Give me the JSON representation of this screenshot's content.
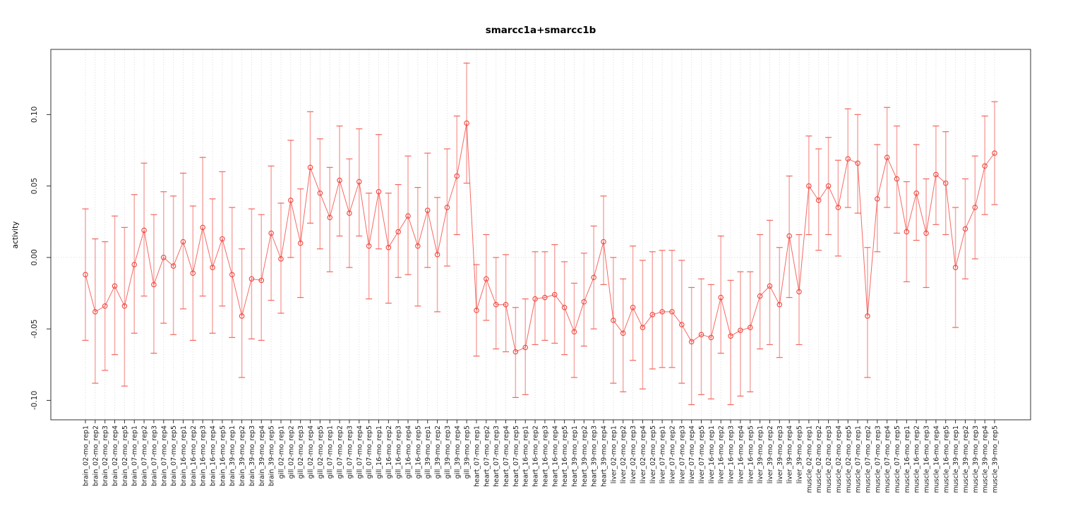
{
  "chart_data": {
    "type": "scatter",
    "title": "smarcc1a+smarcc1b",
    "xlabel": "",
    "ylabel": "activity",
    "ylim": [
      -0.1136,
      0.1456
    ],
    "yticks": [
      -0.1,
      -0.05,
      0.0,
      0.05,
      0.1
    ],
    "ytick_labels": [
      "-0.10",
      "-0.05",
      "0.00",
      "0.05",
      "0.10"
    ],
    "grid": {
      "vertical_per_category": "dotted",
      "zero_line": "dotted",
      "legend": "none"
    },
    "marker": "open-circle",
    "colors": {
      "point": "#f2453d",
      "line": "#f2453d",
      "bar": "#f58f8a",
      "cap": "#f4564d",
      "grid": "#d8d8d8",
      "axis": "#333333"
    },
    "categories": [
      "brain_02-mo_rep1",
      "brain_02-mo_rep2",
      "brain_02-mo_rep3",
      "brain_02-mo_rep4",
      "brain_02-mo_rep5",
      "brain_07-mo_rep1",
      "brain_07-mo_rep2",
      "brain_07-mo_rep3",
      "brain_07-mo_rep4",
      "brain_07-mo_rep5",
      "brain_16-mo_rep1",
      "brain_16-mo_rep2",
      "brain_16-mo_rep3",
      "brain_16-mo_rep4",
      "brain_16-mo_rep5",
      "brain_39-mo_rep1",
      "brain_39-mo_rep2",
      "brain_39-mo_rep3",
      "brain_39-mo_rep4",
      "brain_39-mo_rep5",
      "gill_02-mo_rep1",
      "gill_02-mo_rep2",
      "gill_02-mo_rep3",
      "gill_02-mo_rep4",
      "gill_02-mo_rep5",
      "gill_07-mo_rep1",
      "gill_07-mo_rep2",
      "gill_07-mo_rep3",
      "gill_07-mo_rep4",
      "gill_07-mo_rep5",
      "gill_16-mo_rep1",
      "gill_16-mo_rep2",
      "gill_16-mo_rep3",
      "gill_16-mo_rep4",
      "gill_16-mo_rep5",
      "gill_39-mo_rep1",
      "gill_39-mo_rep2",
      "gill_39-mo_rep3",
      "gill_39-mo_rep4",
      "gill_39-mo_rep5",
      "heart_07-mo_rep1",
      "heart_07-mo_rep2",
      "heart_07-mo_rep3",
      "heart_07-mo_rep4",
      "heart_07-mo_rep5",
      "heart_16-mo_rep1",
      "heart_16-mo_rep2",
      "heart_16-mo_rep3",
      "heart_16-mo_rep4",
      "heart_16-mo_rep5",
      "heart_39-mo_rep1",
      "heart_39-mo_rep2",
      "heart_39-mo_rep3",
      "heart_39-mo_rep4",
      "liver_02-mo_rep1",
      "liver_02-mo_rep2",
      "liver_02-mo_rep3",
      "liver_02-mo_rep4",
      "liver_02-mo_rep5",
      "liver_07-mo_rep1",
      "liver_07-mo_rep2",
      "liver_07-mo_rep3",
      "liver_07-mo_rep4",
      "liver_07-mo_rep5",
      "liver_16-mo_rep1",
      "liver_16-mo_rep2",
      "liver_16-mo_rep3",
      "liver_16-mo_rep4",
      "liver_16-mo_rep5",
      "liver_39-mo_rep1",
      "liver_39-mo_rep2",
      "liver_39-mo_rep3",
      "liver_39-mo_rep4",
      "liver_39-mo_rep5",
      "muscle_02-mo_rep1",
      "muscle_02-mo_rep2",
      "muscle_02-mo_rep3",
      "muscle_02-mo_rep4",
      "muscle_02-mo_rep5",
      "muscle_07-mo_rep1",
      "muscle_07-mo_rep2",
      "muscle_07-mo_rep3",
      "muscle_07-mo_rep4",
      "muscle_07-mo_rep5",
      "muscle_16-mo_rep1",
      "muscle_16-mo_rep2",
      "muscle_16-mo_rep3",
      "muscle_16-mo_rep4",
      "muscle_16-mo_rep5",
      "muscle_39-mo_rep1",
      "muscle_39-mo_rep2",
      "muscle_39-mo_rep3",
      "muscle_39-mo_rep4",
      "muscle_39-mo_rep5"
    ],
    "values": [
      -0.012,
      -0.038,
      -0.034,
      -0.02,
      -0.034,
      -0.005,
      0.019,
      -0.019,
      0.0,
      -0.006,
      0.011,
      -0.011,
      0.021,
      -0.007,
      0.013,
      -0.012,
      -0.041,
      -0.015,
      -0.016,
      0.017,
      -0.001,
      0.04,
      0.01,
      0.063,
      0.045,
      0.028,
      0.054,
      0.031,
      0.053,
      0.008,
      0.046,
      0.007,
      0.018,
      0.029,
      0.008,
      0.033,
      0.002,
      0.035,
      0.057,
      0.094,
      -0.037,
      -0.015,
      -0.033,
      -0.033,
      -0.066,
      -0.063,
      -0.029,
      -0.028,
      -0.026,
      -0.035,
      -0.052,
      -0.031,
      -0.014,
      0.011,
      -0.044,
      -0.053,
      -0.035,
      -0.049,
      -0.04,
      -0.038,
      -0.038,
      -0.047,
      -0.059,
      -0.054,
      -0.056,
      -0.028,
      -0.055,
      -0.051,
      -0.049,
      -0.027,
      -0.02,
      -0.033,
      0.015,
      -0.024,
      0.05,
      0.04,
      0.05,
      0.035,
      0.069,
      0.066,
      -0.041,
      0.041,
      0.07,
      0.055,
      0.018,
      0.045,
      0.017,
      0.058,
      0.052,
      -0.007,
      0.02,
      0.035,
      0.064,
      0.073
    ],
    "err_hi": [
      0.034,
      0.013,
      0.011,
      0.029,
      0.021,
      0.044,
      0.066,
      0.03,
      0.046,
      0.043,
      0.059,
      0.036,
      0.07,
      0.041,
      0.06,
      0.035,
      0.006,
      0.034,
      0.03,
      0.064,
      0.038,
      0.082,
      0.048,
      0.102,
      0.083,
      0.063,
      0.092,
      0.069,
      0.09,
      0.045,
      0.086,
      0.045,
      0.051,
      0.071,
      0.049,
      0.073,
      0.042,
      0.076,
      0.099,
      0.136,
      -0.005,
      0.016,
      0.0,
      0.002,
      -0.035,
      -0.029,
      0.004,
      0.004,
      0.009,
      -0.003,
      -0.018,
      0.003,
      0.022,
      0.043,
      0.0,
      -0.015,
      0.008,
      -0.002,
      0.004,
      0.005,
      0.005,
      -0.002,
      -0.021,
      -0.015,
      -0.019,
      0.015,
      -0.016,
      -0.01,
      -0.01,
      0.016,
      0.026,
      0.007,
      0.057,
      0.016,
      0.085,
      0.076,
      0.084,
      0.068,
      0.104,
      0.1,
      0.007,
      0.079,
      0.105,
      0.092,
      0.053,
      0.079,
      0.055,
      0.092,
      0.088,
      0.035,
      0.055,
      0.071,
      0.099,
      0.109
    ],
    "err_lo": [
      -0.058,
      -0.088,
      -0.079,
      -0.068,
      -0.09,
      -0.053,
      -0.027,
      -0.067,
      -0.046,
      -0.054,
      -0.036,
      -0.058,
      -0.027,
      -0.053,
      -0.034,
      -0.056,
      -0.084,
      -0.057,
      -0.058,
      -0.03,
      -0.039,
      0.0,
      -0.028,
      0.024,
      0.006,
      -0.01,
      0.015,
      -0.007,
      0.015,
      -0.029,
      0.006,
      -0.032,
      -0.014,
      -0.012,
      -0.034,
      -0.007,
      -0.038,
      -0.006,
      0.016,
      0.052,
      -0.069,
      -0.044,
      -0.064,
      -0.066,
      -0.098,
      -0.096,
      -0.061,
      -0.058,
      -0.06,
      -0.068,
      -0.084,
      -0.062,
      -0.05,
      -0.019,
      -0.088,
      -0.094,
      -0.072,
      -0.092,
      -0.078,
      -0.077,
      -0.077,
      -0.088,
      -0.103,
      -0.096,
      -0.099,
      -0.067,
      -0.103,
      -0.097,
      -0.094,
      -0.064,
      -0.061,
      -0.07,
      -0.028,
      -0.061,
      0.016,
      0.005,
      0.016,
      0.001,
      0.035,
      0.031,
      -0.084,
      0.004,
      0.035,
      0.017,
      -0.017,
      0.012,
      -0.021,
      0.023,
      0.016,
      -0.049,
      -0.015,
      -0.001,
      0.03,
      0.037
    ]
  }
}
